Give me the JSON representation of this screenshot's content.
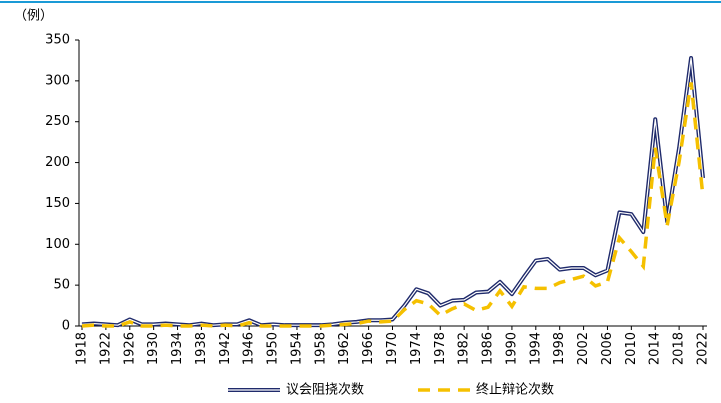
{
  "chart_data": {
    "type": "line",
    "y_label": "（例）",
    "x": [
      1918,
      1920,
      1922,
      1924,
      1926,
      1928,
      1930,
      1932,
      1934,
      1936,
      1938,
      1940,
      1942,
      1944,
      1946,
      1948,
      1950,
      1952,
      1954,
      1956,
      1958,
      1960,
      1962,
      1964,
      1966,
      1968,
      1970,
      1972,
      1974,
      1976,
      1978,
      1980,
      1982,
      1984,
      1986,
      1988,
      1990,
      1992,
      1994,
      1996,
      1998,
      2000,
      2002,
      2004,
      2006,
      2008,
      2010,
      2012,
      2014,
      2016,
      2018,
      2020,
      2022
    ],
    "series": [
      {
        "name": "议会阻挠次数",
        "color": "#1f2a6b",
        "style": "double",
        "values": [
          2,
          3,
          2,
          1,
          8,
          2,
          2,
          3,
          2,
          1,
          3,
          1,
          2,
          2,
          7,
          1,
          2,
          1,
          1,
          1,
          1,
          2,
          4,
          5,
          7,
          7,
          8,
          25,
          45,
          40,
          25,
          31,
          32,
          41,
          42,
          54,
          39,
          60,
          80,
          82,
          69,
          71,
          71,
          62,
          68,
          139,
          137,
          115,
          253,
          128,
          218,
          328,
          181
        ]
      },
      {
        "name": "终止辩论次数",
        "color": "#f5c000",
        "style": "dashed",
        "values": [
          0,
          1,
          0,
          0,
          5,
          0,
          0,
          1,
          0,
          0,
          1,
          0,
          1,
          0,
          4,
          0,
          0,
          0,
          0,
          0,
          0,
          1,
          2,
          3,
          6,
          5,
          6,
          20,
          31,
          27,
          13,
          21,
          27,
          19,
          23,
          43,
          24,
          48,
          46,
          46,
          53,
          57,
          61,
          49,
          54,
          108,
          91,
          73,
          218,
          123,
          201,
          298,
          158
        ]
      }
    ],
    "xlim": [
      1918,
      2022
    ],
    "xticks": [
      1918,
      1922,
      1926,
      1930,
      1934,
      1938,
      1942,
      1946,
      1950,
      1954,
      1958,
      1962,
      1966,
      1970,
      1974,
      1978,
      1982,
      1986,
      1990,
      1994,
      1998,
      2002,
      2006,
      2010,
      2014,
      2018,
      2022
    ],
    "ylim": [
      0,
      350
    ],
    "yticks": [
      0,
      50,
      100,
      150,
      200,
      250,
      300,
      350
    ]
  }
}
